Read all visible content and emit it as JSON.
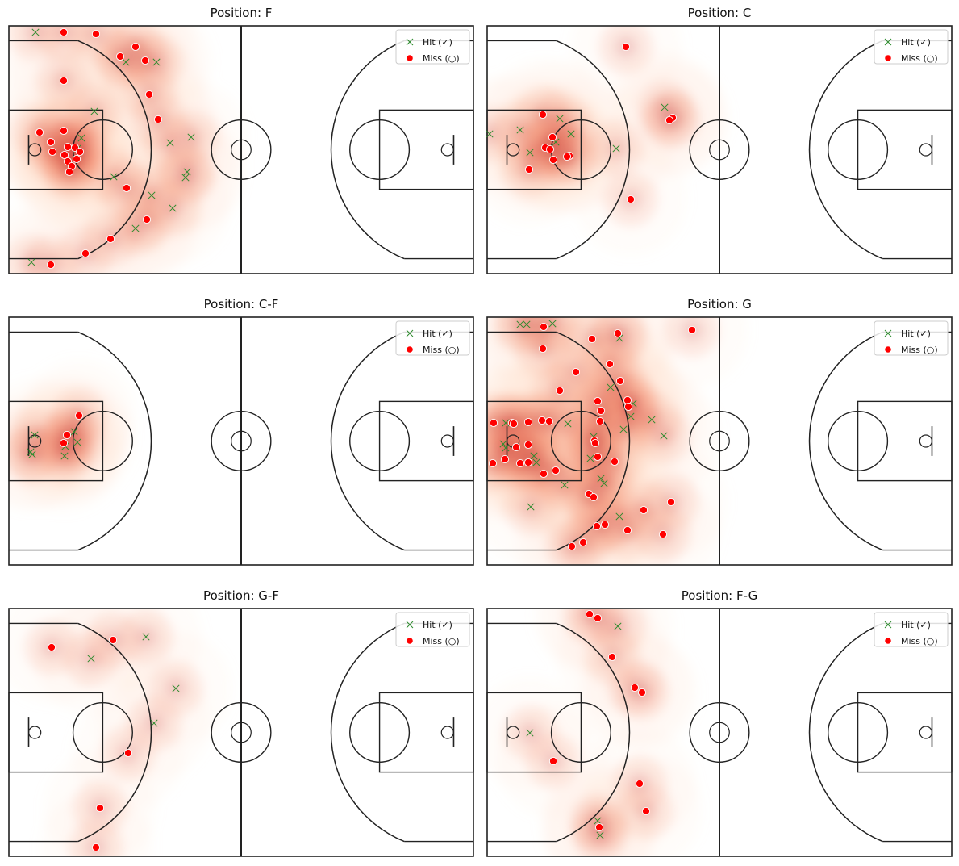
{
  "chart_data": [
    {
      "type": "scatter",
      "title": "Position: F",
      "legend": {
        "position": "top-right",
        "hit_label": "Hit (✓)",
        "miss_label": "Miss (○)"
      },
      "hits": [
        [
          44,
          40
        ],
        [
          156,
          77
        ],
        [
          194,
          77
        ],
        [
          117,
          138
        ],
        [
          101,
          171
        ],
        [
          96,
          184
        ],
        [
          211,
          177
        ],
        [
          237,
          170
        ],
        [
          141,
          219
        ],
        [
          232,
          213
        ],
        [
          230,
          220
        ],
        [
          188,
          242
        ],
        [
          214,
          258
        ],
        [
          168,
          283
        ],
        [
          39,
          325
        ]
      ],
      "misses": [
        [
          79,
          40
        ],
        [
          119,
          42
        ],
        [
          168,
          58
        ],
        [
          149,
          70
        ],
        [
          180,
          75
        ],
        [
          79,
          100
        ],
        [
          185,
          117
        ],
        [
          196,
          148
        ],
        [
          49,
          164
        ],
        [
          79,
          162
        ],
        [
          63,
          176
        ],
        [
          84,
          182
        ],
        [
          93,
          183
        ],
        [
          65,
          188
        ],
        [
          99,
          188
        ],
        [
          80,
          192
        ],
        [
          95,
          197
        ],
        [
          84,
          200
        ],
        [
          89,
          206
        ],
        [
          86,
          213
        ],
        [
          157,
          233
        ],
        [
          182,
          272
        ],
        [
          137,
          296
        ],
        [
          106,
          314
        ],
        [
          63,
          328
        ]
      ]
    },
    {
      "type": "scatter",
      "title": "Position: C",
      "legend": {
        "position": "top-right",
        "hit_label": "Hit (✓)",
        "miss_label": "Miss (○)"
      },
      "hits": [
        [
          824,
          133
        ],
        [
          694,
          147
        ],
        [
          645,
          161
        ],
        [
          607,
          166
        ],
        [
          708,
          166
        ],
        [
          689,
          176
        ],
        [
          764,
          184
        ],
        [
          657,
          189
        ]
      ],
      "misses": [
        [
          776,
          58
        ],
        [
          673,
          142
        ],
        [
          834,
          146
        ],
        [
          830,
          149
        ],
        [
          685,
          170
        ],
        [
          676,
          183
        ],
        [
          682,
          185
        ],
        [
          706,
          193
        ],
        [
          703,
          194
        ],
        [
          686,
          198
        ],
        [
          656,
          210
        ],
        [
          782,
          247
        ]
      ]
    },
    {
      "type": "scatter",
      "title": "Position: C-F",
      "legend": {
        "position": "top-right",
        "hit_label": "Hit (✓)",
        "miss_label": "Miss (○)"
      },
      "hits": [
        [
          43,
          539
        ],
        [
          92,
          535
        ],
        [
          96,
          548
        ],
        [
          81,
          553
        ],
        [
          38,
          560
        ],
        [
          40,
          563
        ],
        [
          80,
          565
        ]
      ],
      "misses": [
        [
          98,
          515
        ],
        [
          83,
          539
        ],
        [
          79,
          549
        ]
      ]
    },
    {
      "type": "scatter",
      "title": "Position: G",
      "legend": {
        "position": "top-right",
        "hit_label": "Hit (✓)",
        "miss_label": "Miss (○)"
      },
      "hits": [
        [
          645,
          402
        ],
        [
          653,
          402
        ],
        [
          685,
          401
        ],
        [
          768,
          419
        ],
        [
          757,
          480
        ],
        [
          785,
          500
        ],
        [
          808,
          520
        ],
        [
          704,
          525
        ],
        [
          773,
          532
        ],
        [
          627,
          524
        ],
        [
          782,
          516
        ],
        [
          823,
          540
        ],
        [
          736,
          541
        ],
        [
          624,
          550
        ],
        [
          627,
          555
        ],
        [
          662,
          565
        ],
        [
          732,
          568
        ],
        [
          665,
          573
        ],
        [
          745,
          593
        ],
        [
          749,
          599
        ],
        [
          700,
          601
        ],
        [
          658,
          628
        ],
        [
          768,
          640
        ]
      ],
      "misses": [
        [
          674,
          405
        ],
        [
          858,
          409
        ],
        [
          734,
          420
        ],
        [
          766,
          413
        ],
        [
          673,
          432
        ],
        [
          714,
          461
        ],
        [
          756,
          451
        ],
        [
          769,
          472
        ],
        [
          694,
          484
        ],
        [
          741,
          497
        ],
        [
          778,
          496
        ],
        [
          779,
          504
        ],
        [
          745,
          509
        ],
        [
          744,
          522
        ],
        [
          612,
          524
        ],
        [
          635,
          524
        ],
        [
          655,
          523
        ],
        [
          637,
          525
        ],
        [
          672,
          521
        ],
        [
          681,
          522
        ],
        [
          737,
          546
        ],
        [
          738,
          549
        ],
        [
          655,
          551
        ],
        [
          640,
          554
        ],
        [
          645,
          574
        ],
        [
          626,
          569
        ],
        [
          611,
          574
        ],
        [
          655,
          573
        ],
        [
          741,
          566
        ],
        [
          762,
          572
        ],
        [
          674,
          587
        ],
        [
          689,
          583
        ],
        [
          730,
          612
        ],
        [
          736,
          616
        ],
        [
          832,
          622
        ],
        [
          798,
          632
        ],
        [
          750,
          650
        ],
        [
          740,
          652
        ],
        [
          778,
          657
        ],
        [
          822,
          662
        ],
        [
          723,
          672
        ],
        [
          709,
          677
        ]
      ]
    },
    {
      "type": "scatter",
      "title": "Position: G-F",
      "legend": {
        "position": "top-right",
        "hit_label": "Hit (✓)",
        "miss_label": "Miss (○)"
      },
      "hits": [
        [
          181,
          789
        ],
        [
          113,
          816
        ],
        [
          218,
          853
        ],
        [
          191,
          896
        ]
      ],
      "misses": [
        [
          64,
          802
        ],
        [
          140,
          793
        ],
        [
          159,
          933
        ],
        [
          124,
          1001
        ],
        [
          119,
          1050
        ]
      ]
    },
    {
      "type": "scatter",
      "title": "Position: F-G",
      "legend": {
        "position": "top-right",
        "hit_label": "Hit (✓)",
        "miss_label": "Miss (○)"
      },
      "hits": [
        [
          766,
          776
        ],
        [
          657,
          908
        ],
        [
          741,
          1017
        ],
        [
          744,
          1035
        ]
      ],
      "misses": [
        [
          731,
          761
        ],
        [
          741,
          766
        ],
        [
          759,
          814
        ],
        [
          787,
          852
        ],
        [
          796,
          858
        ],
        [
          686,
          943
        ],
        [
          793,
          971
        ],
        [
          801,
          1005
        ],
        [
          743,
          1025
        ]
      ]
    }
  ]
}
